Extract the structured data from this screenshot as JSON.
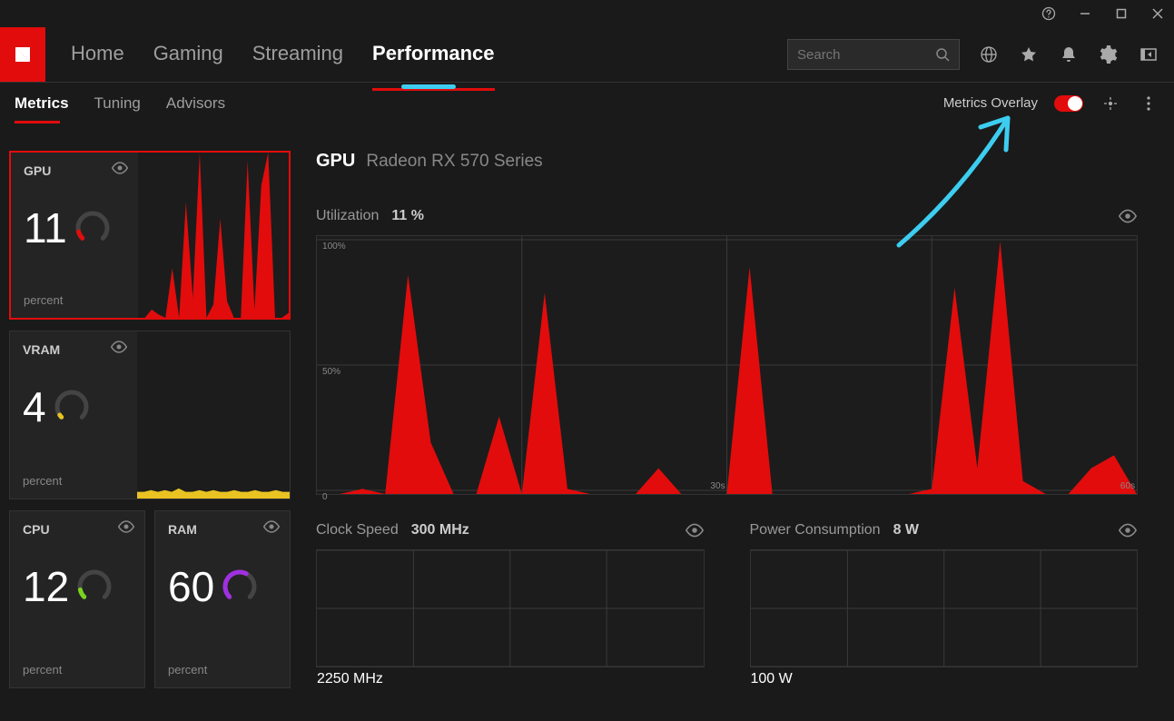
{
  "colors": {
    "accent": "#e20c0c",
    "bg": "#1a1a1a",
    "card": "#242424",
    "chart_bg": "#1c1c1c",
    "grid": "#3a3a3a",
    "text_muted": "#888888",
    "annotation_blue": "#3dcdf0",
    "vram_yellow": "#e8c321",
    "cpu_green": "#7ad321",
    "ram_purple": "#a030e0"
  },
  "titlebar": {
    "help": "?",
    "min": "–",
    "max": "□",
    "close": "×"
  },
  "nav": {
    "items": [
      "Home",
      "Gaming",
      "Streaming",
      "Performance"
    ],
    "active": "Performance"
  },
  "search": {
    "placeholder": "Search"
  },
  "subnav": {
    "items": [
      "Metrics",
      "Tuning",
      "Advisors"
    ],
    "active": "Metrics",
    "overlay_label": "Metrics Overlay",
    "overlay_on": true
  },
  "cards": {
    "gpu": {
      "title": "GPU",
      "value": "11",
      "unit": "percent",
      "gauge_percent": 11,
      "gauge_color": "#e20c0c",
      "selected": true,
      "spark": {
        "type": "area",
        "color": "#e20c0c",
        "values": [
          0,
          0,
          5,
          2,
          0,
          30,
          0,
          70,
          12,
          100,
          0,
          8,
          60,
          10,
          0,
          0,
          95,
          5,
          80,
          100,
          0,
          0,
          3
        ]
      }
    },
    "vram": {
      "title": "VRAM",
      "value": "4",
      "unit": "percent",
      "gauge_percent": 4,
      "gauge_color": "#e8c321",
      "selected": false,
      "spark": {
        "type": "area",
        "color": "#e8c321",
        "values": [
          4,
          4,
          5,
          4,
          5,
          4,
          6,
          4,
          4,
          5,
          4,
          5,
          4,
          4,
          5,
          4,
          4,
          5,
          4,
          4,
          5,
          4,
          4
        ]
      }
    },
    "cpu": {
      "title": "CPU",
      "value": "12",
      "unit": "percent",
      "gauge_percent": 12,
      "gauge_color": "#7ad321"
    },
    "ram": {
      "title": "RAM",
      "value": "60",
      "unit": "percent",
      "gauge_percent": 60,
      "gauge_color": "#a030e0"
    }
  },
  "main": {
    "title": "GPU",
    "subtitle": "Radeon RX 570 Series",
    "utilization": {
      "label": "Utilization",
      "value": "11 %",
      "chart": {
        "type": "area",
        "color": "#e20c0c",
        "ylim": [
          0,
          100
        ],
        "ylabels": [
          {
            "v": 0,
            "t": "0"
          },
          {
            "v": 50,
            "t": "50%"
          },
          {
            "v": 100,
            "t": "100%"
          }
        ],
        "xlabels": [
          {
            "p": 0.5,
            "t": "30s"
          },
          {
            "p": 1.0,
            "t": "60s"
          }
        ],
        "values": [
          0,
          0,
          2,
          0,
          85,
          20,
          0,
          0,
          30,
          0,
          78,
          2,
          0,
          0,
          0,
          10,
          0,
          0,
          0,
          88,
          0,
          0,
          0,
          0,
          0,
          0,
          0,
          2,
          80,
          10,
          98,
          5,
          0,
          0,
          10,
          15,
          0
        ]
      }
    },
    "clock": {
      "label": "Clock Speed",
      "value": "300 MHz",
      "chart": {
        "type": "area",
        "color": "#e20c0c",
        "ylabel_top": "2250 MHz",
        "values": []
      }
    },
    "power": {
      "label": "Power Consumption",
      "value": "8 W",
      "chart": {
        "type": "area",
        "color": "#e20c0c",
        "ylabel_top": "100 W",
        "values": []
      }
    }
  }
}
